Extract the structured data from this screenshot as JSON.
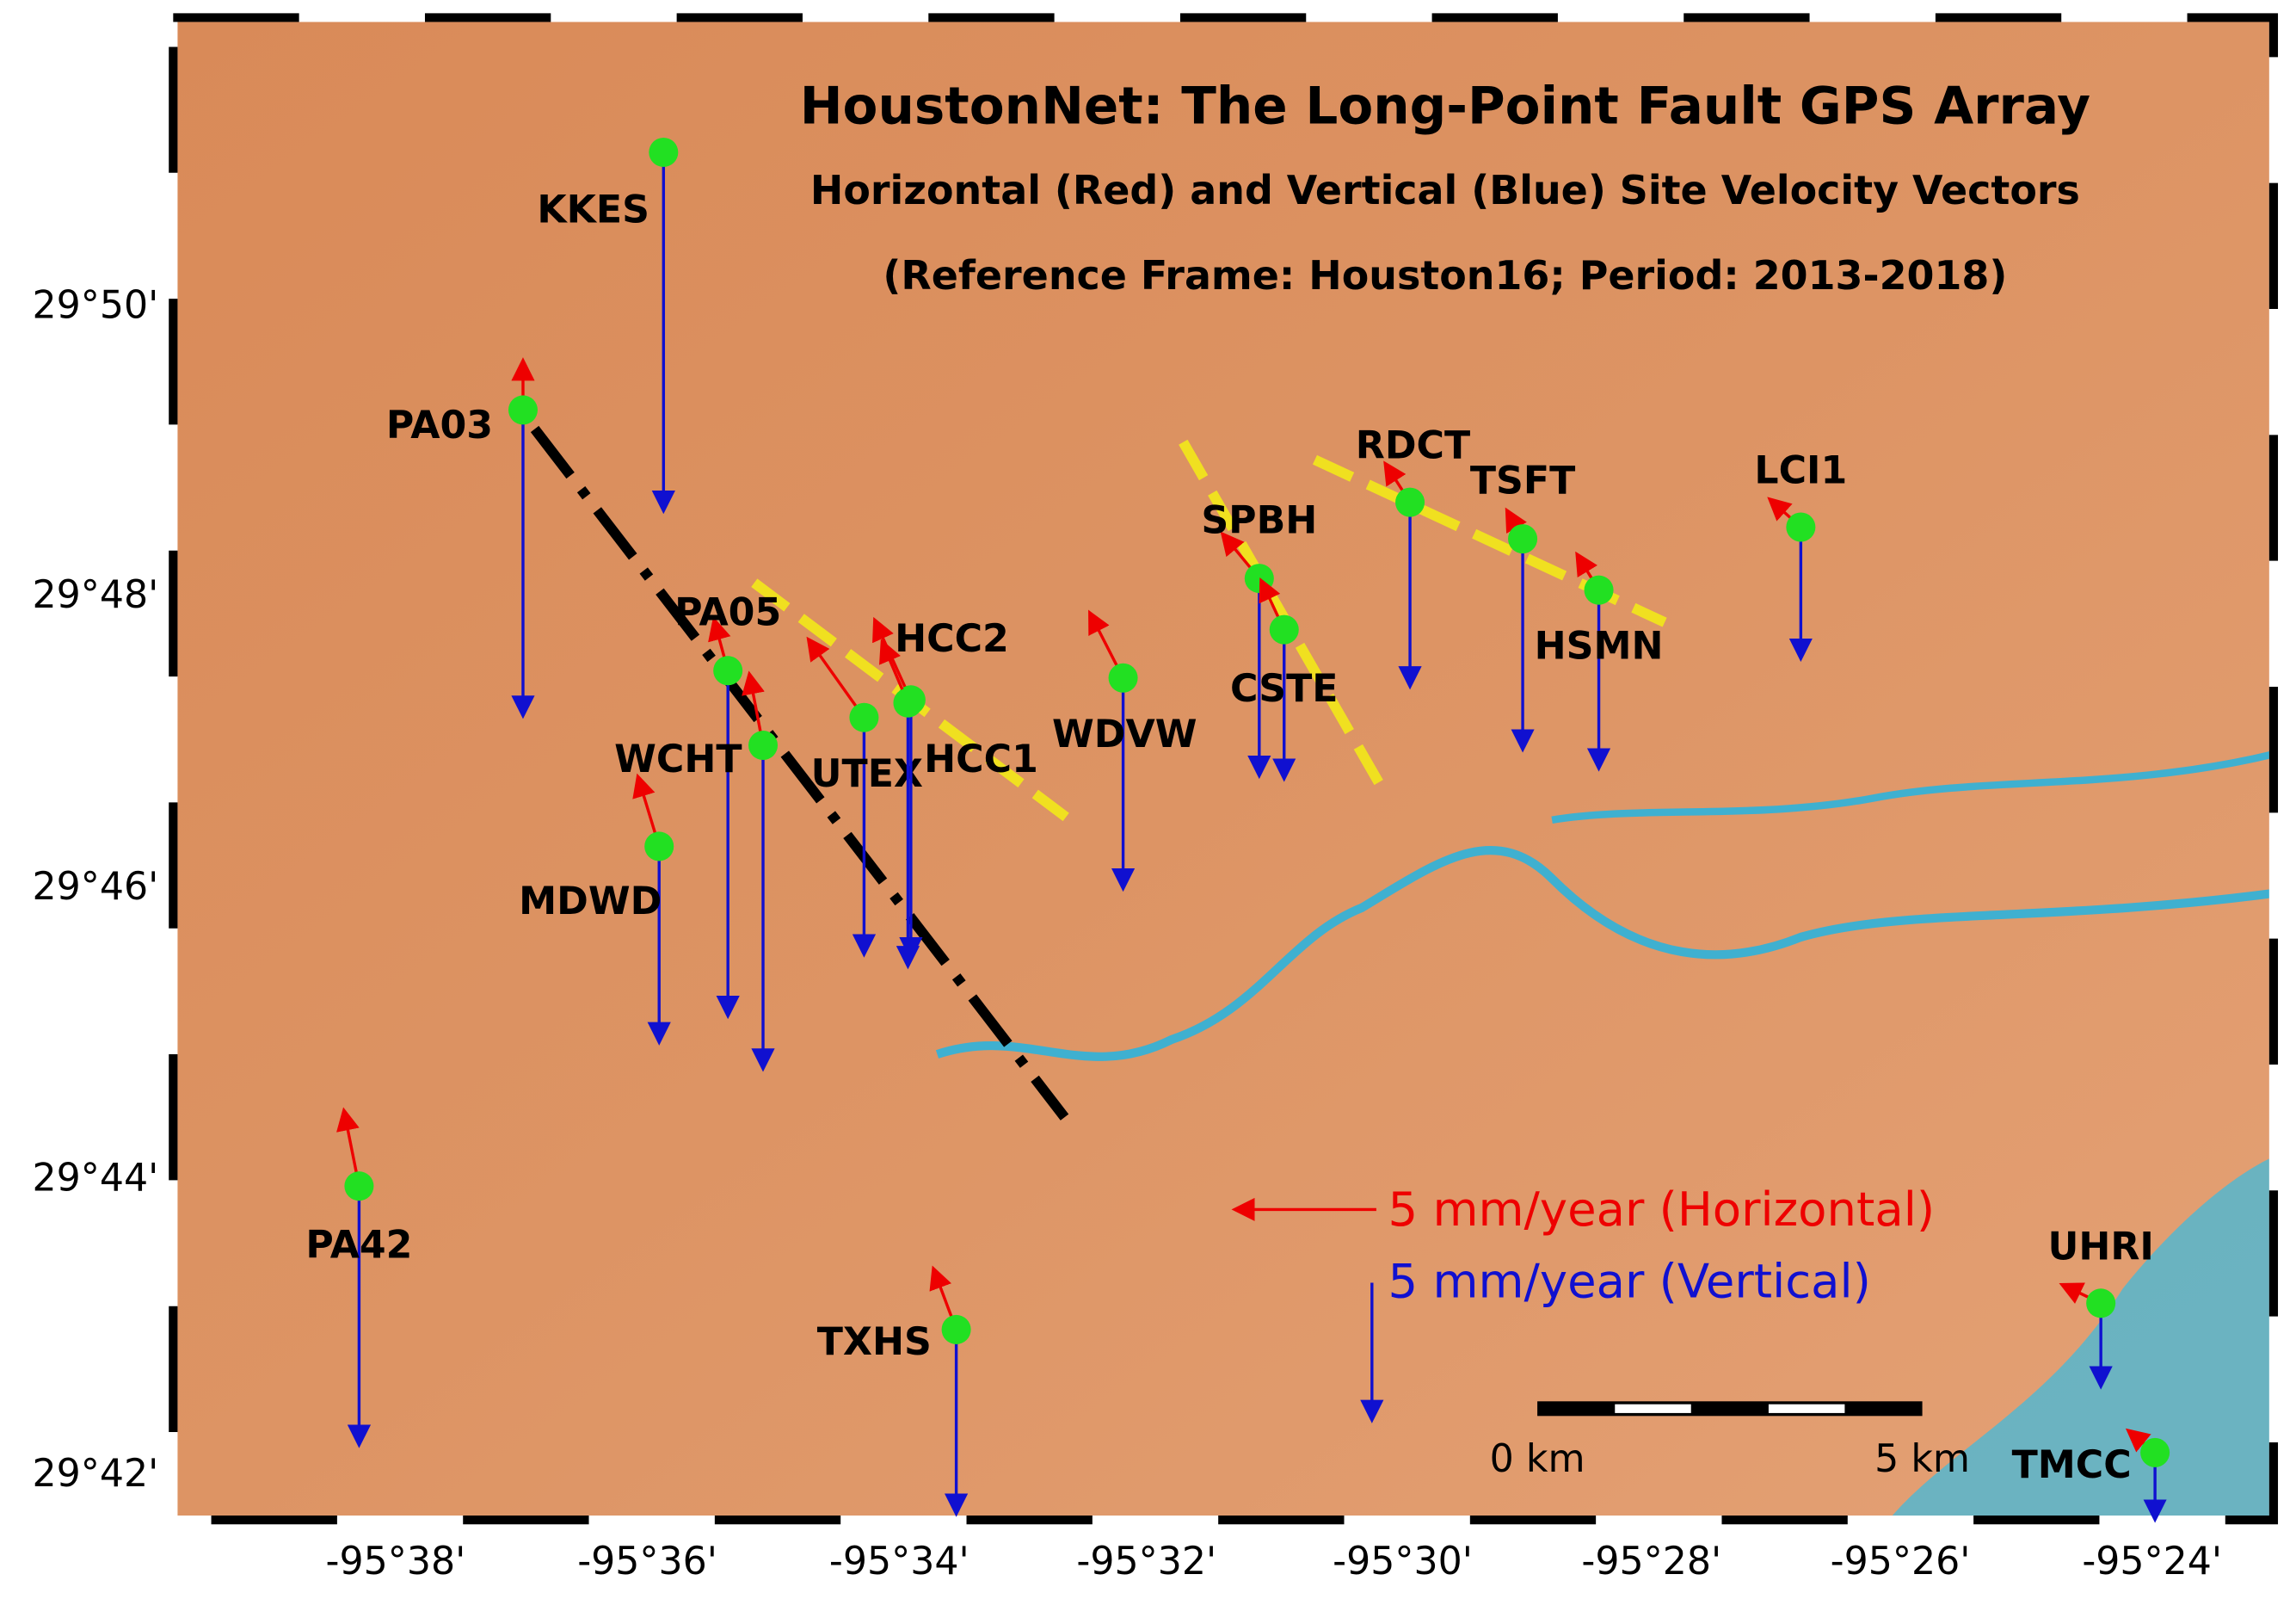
{
  "title": "HoustonNet: The Long-Point Fault GPS Array",
  "subtitle": "Horizontal (Red) and Vertical (Blue) Site Velocity Vectors",
  "reference": "(Reference Frame: Houston16; Period: 2013-2018)",
  "stations": [
    "KKES",
    "PA03",
    "PA05",
    "WCHT",
    "UTEX",
    "HCC2",
    "HCC1",
    "WDVW",
    "MDWD",
    "SPBH",
    "CSTE",
    "RDCT",
    "TSFT",
    "HSMN",
    "LCI1",
    "PA42",
    "TXHS",
    "UHRI",
    "TMCC"
  ],
  "latitude_ticks": [
    "29°50'",
    "29°48'",
    "29°46'",
    "29°44'",
    "29°42'"
  ],
  "longitude_ticks": [
    "-95°38'",
    "-95°36'",
    "-95°34'",
    "-95°32'",
    "-95°30'",
    "-95°28'",
    "-95°26'",
    "-95°24'"
  ],
  "legend": {
    "horizontal": "5 mm/year (Horizontal)",
    "vertical": "5 mm/year (Vertical)"
  },
  "scale_bar": {
    "start": "0 km",
    "end": "5 km"
  }
}
